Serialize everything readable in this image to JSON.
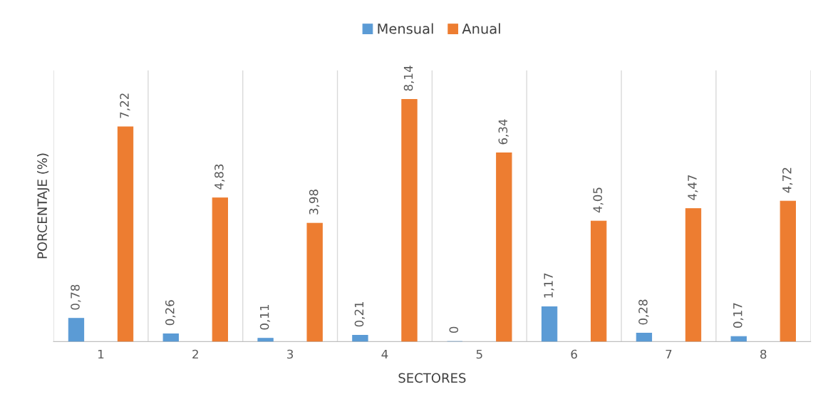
{
  "chart_data": {
    "type": "bar",
    "xlabel": "SECTORES",
    "ylabel": "PORCENTAJE (%)",
    "categories": [
      "1",
      "2",
      "3",
      "4",
      "5",
      "6",
      "7",
      "8"
    ],
    "series": [
      {
        "name": "Mensual",
        "color": "#5b9bd5",
        "values": [
          0.78,
          0.26,
          0.11,
          0.21,
          0,
          1.17,
          0.28,
          0.17
        ],
        "value_labels": [
          "0,78",
          "0,26",
          "0,11",
          "0,21",
          "0",
          "1,17",
          "0,28",
          "0,17"
        ]
      },
      {
        "name": "Anual",
        "color": "#ed7d31",
        "values": [
          7.22,
          4.83,
          3.98,
          8.14,
          6.34,
          4.05,
          4.47,
          4.72
        ],
        "value_labels": [
          "7,22",
          "4,83",
          "3,98",
          "8,14",
          "6,34",
          "4,05",
          "4,47",
          "4,72"
        ]
      }
    ],
    "grid": "x",
    "legend": "top",
    "tick_labels": "x"
  }
}
